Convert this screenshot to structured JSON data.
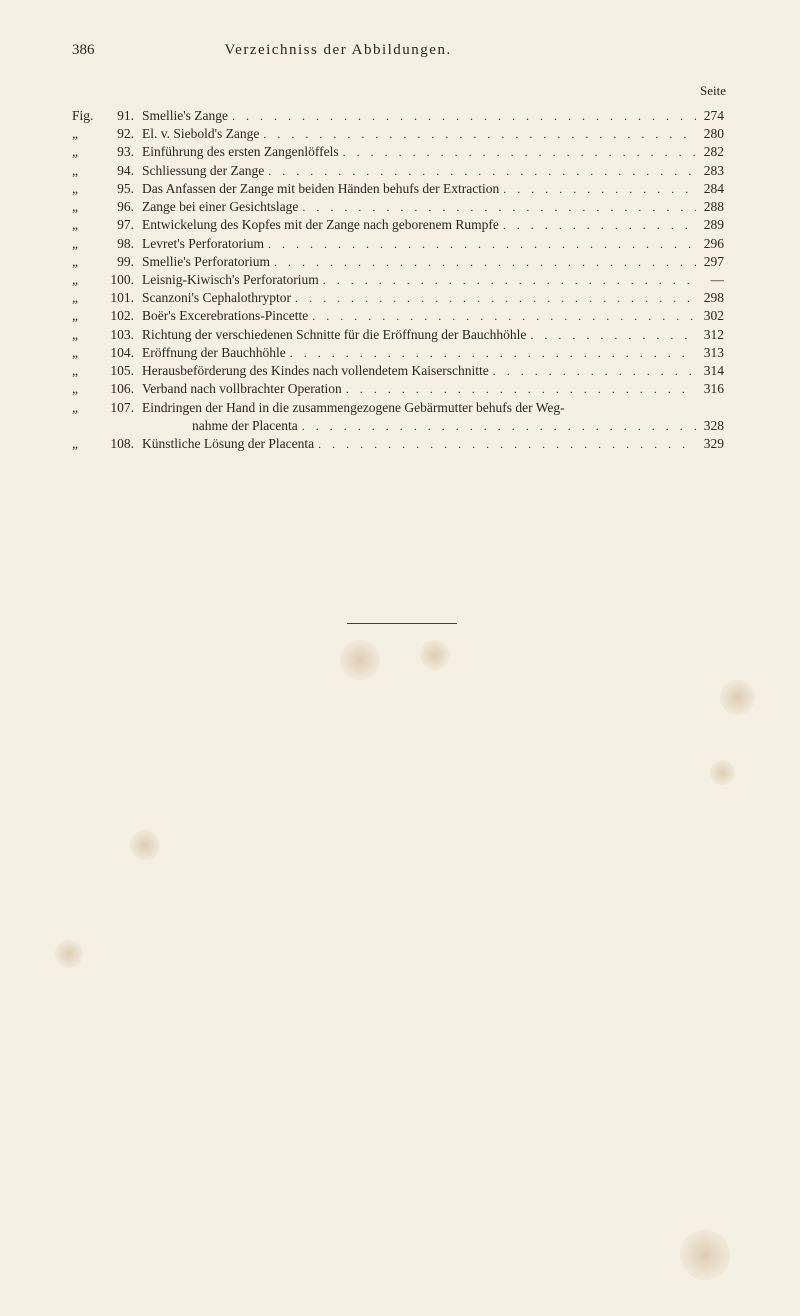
{
  "header": {
    "page_number": "386",
    "title": "Verzeichniss der Abbildungen."
  },
  "seite_label": "Seite",
  "entries": [
    {
      "prefix": "Fig.",
      "num": "91.",
      "text": "Smellie's Zange",
      "page": "274"
    },
    {
      "prefix": "„",
      "num": "92.",
      "text": "El. v. Siebold's Zange",
      "page": "280"
    },
    {
      "prefix": "„",
      "num": "93.",
      "text": "Einführung des ersten Zangenlöffels",
      "page": "282"
    },
    {
      "prefix": "„",
      "num": "94.",
      "text": "Schliessung der Zange",
      "page": "283"
    },
    {
      "prefix": "„",
      "num": "95.",
      "text": "Das Anfassen der Zange mit beiden Händen behufs der Extraction",
      "page": "284"
    },
    {
      "prefix": "„",
      "num": "96.",
      "text": "Zange bei einer Gesichtslage",
      "page": "288"
    },
    {
      "prefix": "„",
      "num": "97.",
      "text": "Entwickelung des Kopfes mit der Zange nach geborenem Rumpfe",
      "page": "289"
    },
    {
      "prefix": "„",
      "num": "98.",
      "text": "Levret's Perforatorium",
      "page": "296"
    },
    {
      "prefix": "„",
      "num": "99.",
      "text": "Smellie's Perforatorium",
      "page": "297"
    },
    {
      "prefix": "„",
      "num": "100.",
      "text": "Leisnig-Kiwisch's Perforatorium",
      "page": "—"
    },
    {
      "prefix": "„",
      "num": "101.",
      "text": "Scanzoni's Cephalothryptor",
      "page": "298"
    },
    {
      "prefix": "„",
      "num": "102.",
      "text": "Boër's Excerebrations-Pincette",
      "page": "302"
    },
    {
      "prefix": "„",
      "num": "103.",
      "text": "Richtung der verschiedenen Schnitte für die Eröffnung der Bauchhöhle",
      "page": "312"
    },
    {
      "prefix": "„",
      "num": "104.",
      "text": "Eröffnung der Bauchhöhle",
      "page": "313"
    },
    {
      "prefix": "„",
      "num": "105.",
      "text": "Herausbeförderung des Kindes nach vollendetem Kaiserschnitte",
      "page": "314"
    },
    {
      "prefix": "„",
      "num": "106.",
      "text": "Verband nach vollbrachter Operation",
      "page": "316"
    },
    {
      "prefix": "„",
      "num": "107.",
      "text": "Eindringen der Hand in die zusammengezogene Gebärmutter behufs der Weg-",
      "continuation": "nahme der Placenta",
      "page": "328"
    },
    {
      "prefix": "„",
      "num": "108.",
      "text": "Künstliche Lösung der Placenta",
      "page": "329"
    }
  ],
  "dots": ". . . . . . . . . . . . . . . . . . . . . . . . . . . . . . . . . . . . . . . . . . . . . . . . . ."
}
